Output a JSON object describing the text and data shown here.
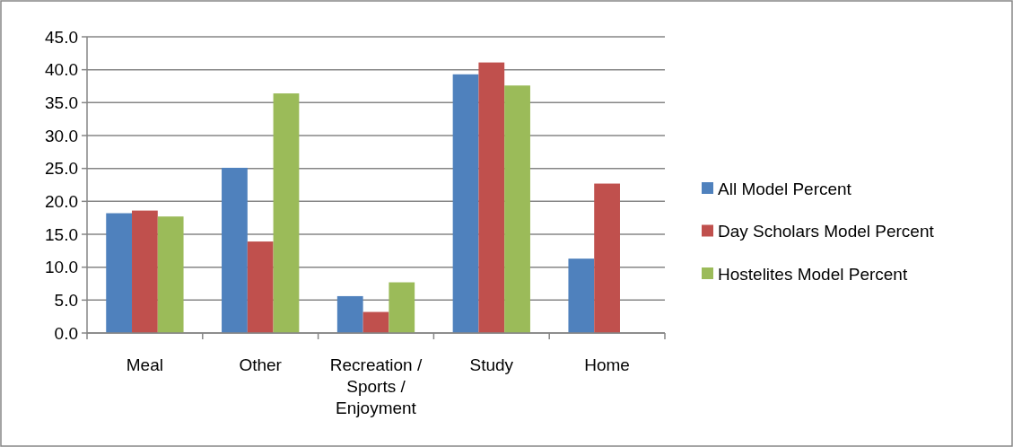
{
  "chart_data": {
    "type": "bar",
    "categories": [
      "Meal",
      "Other",
      "Recreation / Sports / Enjoyment",
      "Study",
      "Home"
    ],
    "series": [
      {
        "name": "All Model Percent",
        "color": "#4f81bd",
        "values": [
          18.2,
          25.1,
          5.6,
          39.3,
          11.3
        ]
      },
      {
        "name": "Day Scholars Model Percent",
        "color": "#c0504d",
        "values": [
          18.6,
          13.9,
          3.2,
          41.1,
          22.7
        ]
      },
      {
        "name": "Hostelites Model Percent",
        "color": "#9bbb59",
        "values": [
          17.7,
          36.4,
          7.7,
          37.6,
          null
        ]
      }
    ],
    "ylim": [
      0,
      45
    ],
    "yticks": [
      {
        "value": 0,
        "label": "0.0"
      },
      {
        "value": 5,
        "label": "5.0"
      },
      {
        "value": 10,
        "label": "10.0"
      },
      {
        "value": 15,
        "label": "15.0"
      },
      {
        "value": 20,
        "label": "20.0"
      },
      {
        "value": 25,
        "label": "25.0"
      },
      {
        "value": 30,
        "label": "30.0"
      },
      {
        "value": 35,
        "label": "35.0"
      },
      {
        "value": 40,
        "label": "40.0"
      },
      {
        "value": 45,
        "label": "45.0"
      }
    ],
    "grid": "y",
    "legend": "right"
  }
}
